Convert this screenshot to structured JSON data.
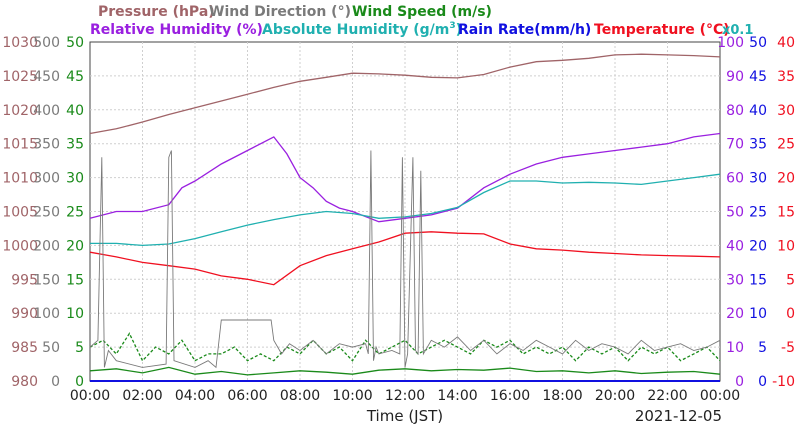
{
  "chart_data": {
    "type": "line",
    "date_label": "2021-12-05",
    "xlabel": "Time (JST)",
    "x_range": [
      0,
      24
    ],
    "x_ticks": [
      "00:00",
      "02:00",
      "04:00",
      "06:00",
      "08:00",
      "10:00",
      "12:00",
      "14:00",
      "16:00",
      "18:00",
      "20:00",
      "22:00",
      "00:00"
    ],
    "legend": {
      "pressure": "Pressure (hPa)",
      "wind_dir": "Wind Direction (°)",
      "wind_speed": "Wind Speed (m/s)",
      "rel_hum": "Relative Humidity (%)",
      "abs_hum_prefix": "Absolute Humidity (g/m",
      "abs_hum_sup": "3",
      "abs_hum_suffix": ")",
      "rain": "Rain Rate(mm/h)",
      "temp": "Temperature (°C)",
      "x01": "x0.1"
    },
    "colors": {
      "pressure": "#a06468",
      "wind_dir": "#7a7a7a",
      "wind_speed": "#1a8a1a",
      "rel_hum": "#9a20e0",
      "abs_hum": "#20b0b0",
      "rain": "#1010e0",
      "temp": "#f01020"
    },
    "axes": {
      "pressure": {
        "range": [
          980,
          1030
        ],
        "ticks": [
          "1030",
          "1025",
          "1020",
          "1015",
          "1010",
          "1005",
          "1000",
          "995",
          "990",
          "985",
          "980"
        ]
      },
      "wind_dir": {
        "range": [
          0,
          500
        ],
        "ticks": [
          "500",
          "450",
          "400",
          "350",
          "300",
          "250",
          "200",
          "150",
          "100",
          "50",
          "0"
        ]
      },
      "wind_speed": {
        "range": [
          0,
          50
        ],
        "ticks": [
          "50",
          "45",
          "40",
          "35",
          "30",
          "25",
          "20",
          "15",
          "10",
          "5",
          "0"
        ]
      },
      "humidity": {
        "range": [
          0,
          100
        ],
        "ticks": [
          "100",
          "90",
          "80",
          "70",
          "60",
          "50",
          "40",
          "30",
          "20",
          "10",
          "0"
        ]
      },
      "rain": {
        "range": [
          0,
          50
        ],
        "ticks": [
          "50",
          "45",
          "40",
          "35",
          "30",
          "25",
          "20",
          "15",
          "10",
          "5",
          "0"
        ]
      },
      "temp": {
        "range": [
          -10,
          40
        ],
        "ticks": [
          "40",
          "35",
          "30",
          "25",
          "20",
          "15",
          "10",
          "5",
          "0",
          "-5",
          "-10"
        ]
      }
    },
    "series": [
      {
        "name": "Pressure (hPa)",
        "axis": "pressure",
        "x": [
          0,
          1,
          2,
          3,
          4,
          5,
          6,
          7,
          8,
          9,
          10,
          11,
          12,
          13,
          14,
          15,
          16,
          17,
          18,
          19,
          20,
          21,
          22,
          23,
          24
        ],
        "y": [
          1016.5,
          1017.2,
          1018.2,
          1019.3,
          1020.3,
          1021.3,
          1022.3,
          1023.3,
          1024.2,
          1024.8,
          1025.4,
          1025.3,
          1025.1,
          1024.8,
          1024.7,
          1025.2,
          1026.3,
          1027.1,
          1027.3,
          1027.6,
          1028.1,
          1028.2,
          1028.1,
          1028.0,
          1027.8
        ]
      },
      {
        "name": "Relative Humidity (%)",
        "axis": "humidity",
        "x": [
          0,
          1,
          2,
          3,
          3.5,
          4,
          5,
          6,
          7,
          7.5,
          8,
          8.5,
          9,
          9.5,
          10,
          11,
          12,
          13,
          14,
          15,
          16,
          17,
          18,
          19,
          20,
          21,
          22,
          23,
          24
        ],
        "y": [
          48,
          50,
          50,
          52,
          57,
          59,
          64,
          68,
          72,
          67,
          60,
          57,
          53,
          51,
          50,
          47,
          48,
          49,
          51,
          57,
          61,
          64,
          66,
          67,
          68,
          69,
          70,
          72,
          73
        ]
      },
      {
        "name": "Absolute Humidity",
        "axis": "wind_speed",
        "x": [
          0,
          1,
          2,
          3,
          4,
          5,
          6,
          7,
          8,
          9,
          10,
          11,
          12,
          13,
          14,
          15,
          16,
          17,
          18,
          19,
          20,
          21,
          22,
          23,
          24
        ],
        "y": [
          20.3,
          20.3,
          20.0,
          20.2,
          21.0,
          22.0,
          23.0,
          23.8,
          24.5,
          25.0,
          24.7,
          24.0,
          24.2,
          24.7,
          25.6,
          27.8,
          29.5,
          29.5,
          29.2,
          29.3,
          29.2,
          29.0,
          29.5,
          30.0,
          30.5
        ]
      },
      {
        "name": "Temperature (°C)",
        "axis": "temp",
        "x": [
          0,
          1,
          2,
          3,
          4,
          5,
          6,
          7,
          8,
          9,
          10,
          11,
          12,
          13,
          14,
          15,
          16,
          17,
          18,
          19,
          20,
          21,
          22,
          23,
          24
        ],
        "y": [
          9.0,
          8.3,
          7.5,
          7.0,
          6.5,
          5.5,
          5.0,
          4.2,
          7.0,
          8.5,
          9.5,
          10.5,
          11.8,
          12.0,
          11.8,
          11.7,
          10.2,
          9.5,
          9.3,
          9.0,
          8.8,
          8.6,
          8.5,
          8.4,
          8.3
        ]
      },
      {
        "name": "Wind Speed max (m/s)",
        "axis": "wind_speed",
        "x": [
          0,
          0.5,
          1,
          1.5,
          2,
          2.5,
          3,
          3.5,
          4,
          4.5,
          5,
          5.5,
          6,
          6.5,
          7,
          7.5,
          8,
          8.5,
          9,
          9.5,
          10,
          10.5,
          11,
          11.5,
          12,
          12.5,
          13,
          13.5,
          14,
          14.5,
          15,
          15.5,
          16,
          16.5,
          17,
          17.5,
          18,
          18.5,
          19,
          19.5,
          20,
          20.5,
          21,
          21.5,
          22,
          22.5,
          23,
          23.5,
          24
        ],
        "y": [
          5,
          6,
          4,
          7,
          3,
          5,
          4,
          6,
          3,
          4,
          4,
          5,
          3,
          4,
          3,
          5,
          4,
          6,
          4,
          5,
          3,
          6,
          4,
          5,
          6,
          4,
          5,
          6,
          5,
          4,
          6,
          5,
          6,
          4,
          5,
          4,
          5,
          3,
          5,
          4,
          5,
          3,
          5,
          4,
          5,
          3,
          4,
          5,
          3
        ]
      },
      {
        "name": "Wind Speed avg (m/s)",
        "axis": "wind_speed",
        "x": [
          0,
          1,
          2,
          3,
          4,
          5,
          6,
          7,
          8,
          9,
          10,
          11,
          12,
          13,
          14,
          15,
          16,
          17,
          18,
          19,
          20,
          21,
          22,
          23,
          24
        ],
        "y": [
          1.5,
          1.8,
          1.2,
          2.0,
          1.0,
          1.4,
          0.9,
          1.2,
          1.5,
          1.3,
          1.0,
          1.6,
          1.8,
          1.5,
          1.7,
          1.6,
          1.9,
          1.4,
          1.5,
          1.2,
          1.5,
          1.1,
          1.3,
          1.4,
          1.0
        ]
      },
      {
        "name": "Wind Direction (°)",
        "axis": "wind_dir",
        "x": [
          0,
          0.3,
          0.45,
          0.55,
          0.7,
          1,
          2,
          2.9,
          3.0,
          3.1,
          3.2,
          4,
          4.5,
          4.8,
          5.0,
          6.9,
          7.0,
          7.3,
          7.6,
          8,
          8.5,
          9,
          9.5,
          10,
          10.5,
          10.6,
          10.7,
          10.8,
          10.9,
          11,
          11.5,
          11.8,
          11.9,
          12.0,
          12.1,
          12.3,
          12.4,
          12.5,
          12.6,
          12.7,
          13,
          13.5,
          14,
          14.5,
          15,
          15.5,
          16,
          16.5,
          17,
          17.5,
          18,
          18.5,
          19,
          19.5,
          20,
          20.5,
          21,
          21.5,
          22,
          22.5,
          23,
          23.5,
          24
        ],
        "y": [
          50,
          60,
          330,
          20,
          45,
          30,
          20,
          25,
          330,
          340,
          30,
          20,
          30,
          20,
          90,
          90,
          60,
          40,
          55,
          45,
          60,
          40,
          55,
          50,
          55,
          40,
          340,
          30,
          50,
          40,
          45,
          40,
          330,
          20,
          40,
          330,
          45,
          40,
          310,
          40,
          60,
          50,
          65,
          45,
          60,
          40,
          55,
          45,
          60,
          50,
          40,
          60,
          45,
          55,
          50,
          40,
          60,
          45,
          50,
          55,
          45,
          50,
          60
        ]
      },
      {
        "name": "Rain Rate(mm/h)",
        "axis": "rain",
        "x": [
          0,
          24
        ],
        "y": [
          0,
          0
        ]
      }
    ]
  }
}
